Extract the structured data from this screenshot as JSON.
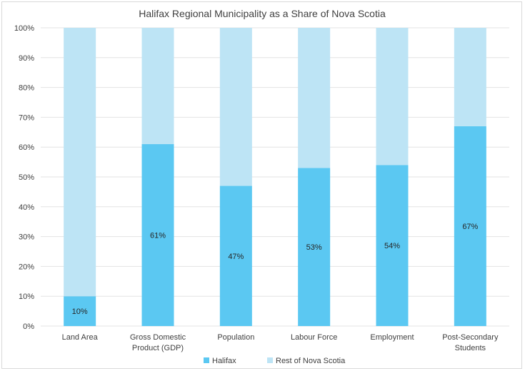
{
  "chart_data": {
    "type": "bar",
    "stacked": true,
    "title": "Halifax Regional Municipality as a Share of Nova Scotia",
    "xlabel": "",
    "ylabel": "",
    "ylim": [
      0,
      100
    ],
    "y_ticks": [
      "0%",
      "10%",
      "20%",
      "30%",
      "40%",
      "50%",
      "60%",
      "70%",
      "80%",
      "90%",
      "100%"
    ],
    "grid": true,
    "legend_position": "bottom",
    "categories": [
      [
        "Land Area"
      ],
      [
        "Gross Domestic",
        "Product (GDP)"
      ],
      [
        "Population"
      ],
      [
        "Labour Force"
      ],
      [
        "Employment"
      ],
      [
        "Post-Secondary",
        "Students"
      ]
    ],
    "series": [
      {
        "name": "Halifax",
        "color": "#5bc8f2",
        "values": [
          10,
          61,
          47,
          53,
          54,
          67
        ],
        "data_labels": [
          "10%",
          "61%",
          "47%",
          "53%",
          "54%",
          "67%"
        ]
      },
      {
        "name": "Rest of Nova Scotia",
        "color": "#bde4f5",
        "values": [
          90,
          39,
          53,
          47,
          46,
          33
        ]
      }
    ]
  }
}
